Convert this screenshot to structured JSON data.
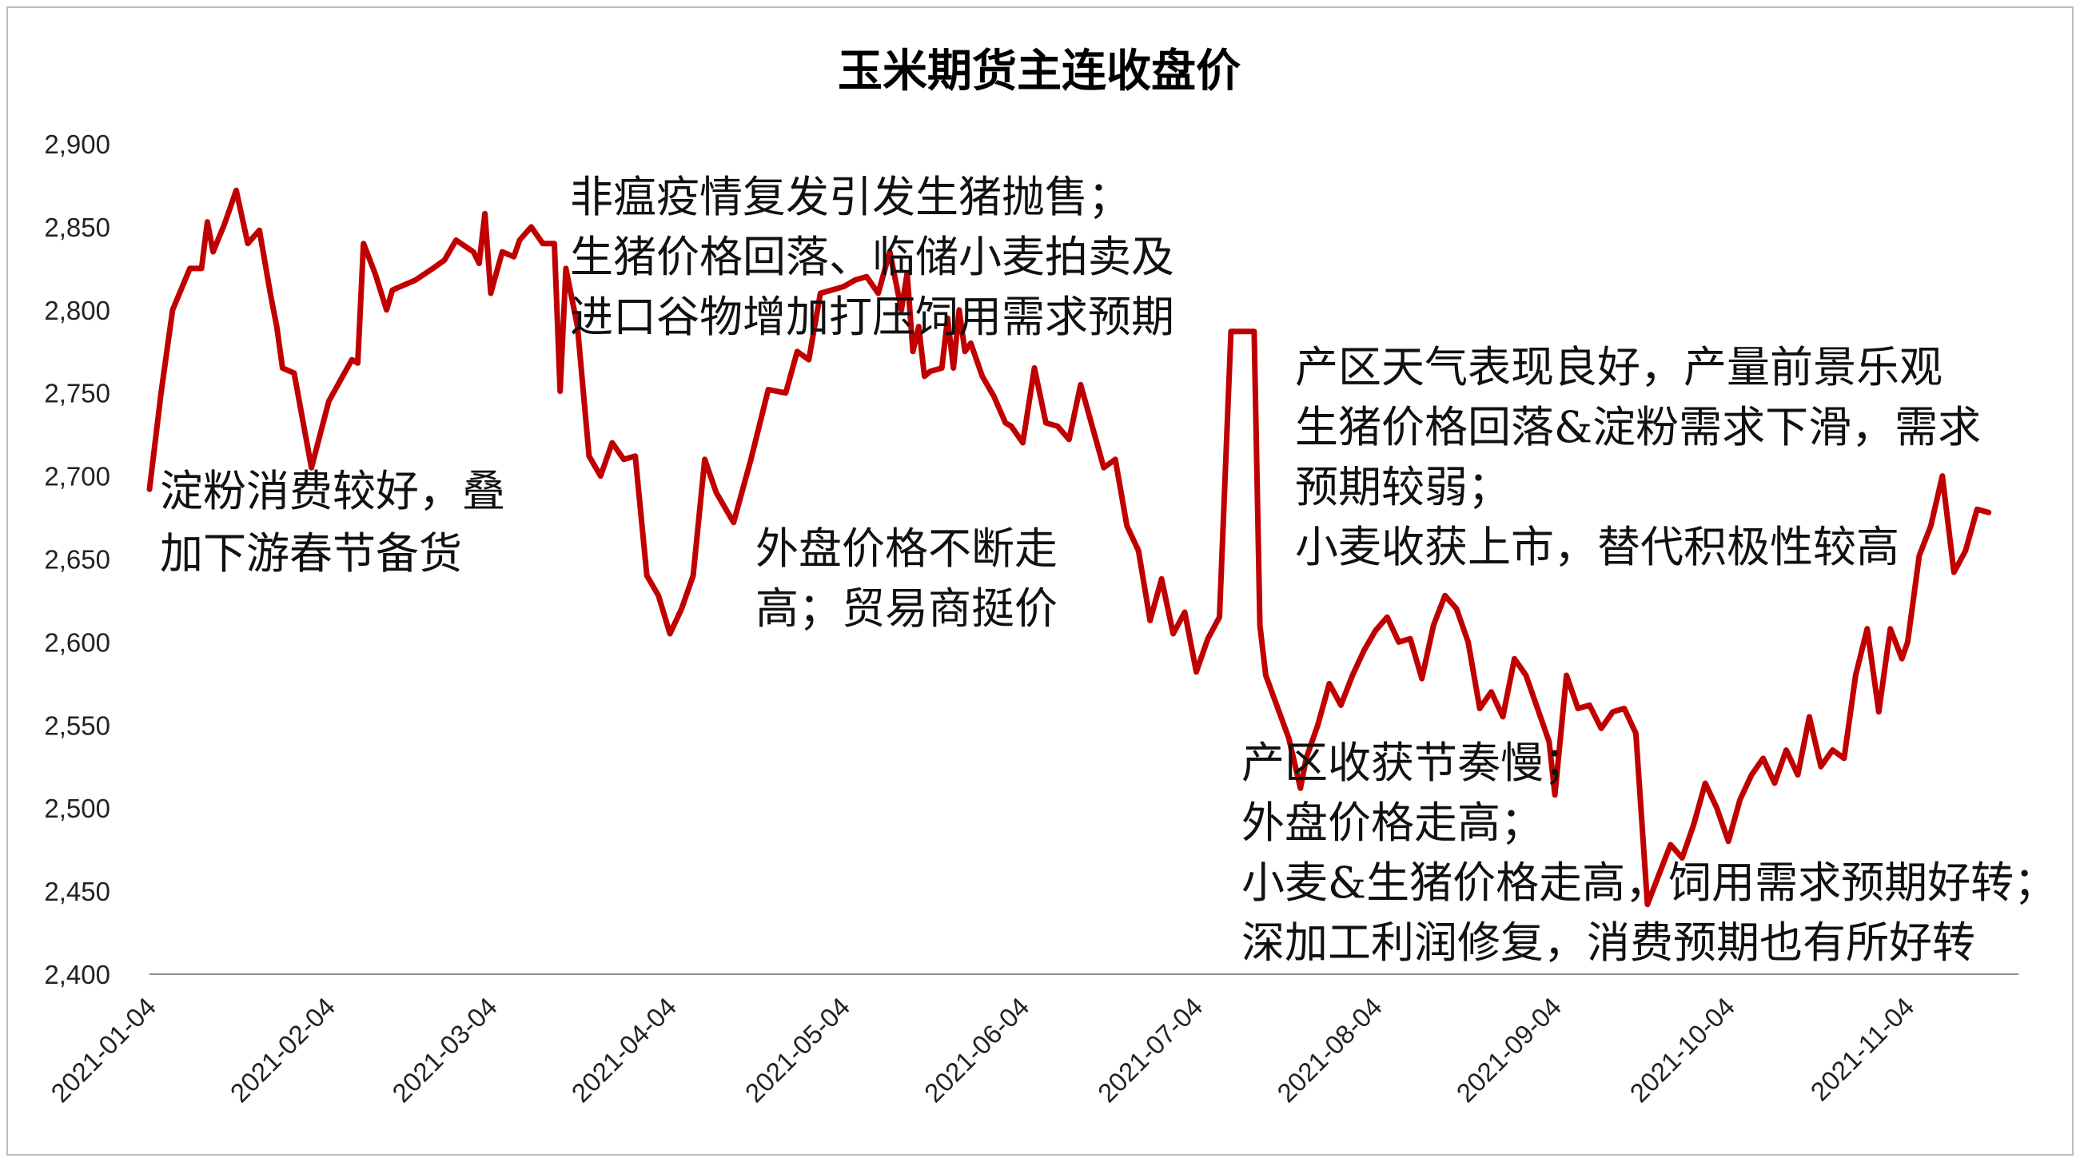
{
  "chart_data": {
    "type": "line",
    "title": "玉米期货主连收盘价",
    "xlabel": "",
    "ylabel": "",
    "ylim": [
      2400,
      2900
    ],
    "y_ticks": [
      "2,400",
      "2,450",
      "2,500",
      "2,550",
      "2,600",
      "2,650",
      "2,700",
      "2,750",
      "2,800",
      "2,850",
      "2,900"
    ],
    "x_ticks": [
      "2021-01-04",
      "2021-02-04",
      "2021-03-04",
      "2021-04-04",
      "2021-05-04",
      "2021-06-04",
      "2021-07-04",
      "2021-08-04",
      "2021-09-04",
      "2021-10-04",
      "2021-11-04"
    ],
    "grid": false,
    "line_color": "#c00000",
    "series": [
      {
        "x": [
          "2021-01-04",
          "2021-01-06",
          "2021-01-08",
          "2021-01-11",
          "2021-01-13",
          "2021-01-14",
          "2021-01-15",
          "2021-01-17",
          "2021-01-19",
          "2021-01-21",
          "2021-01-23",
          "2021-01-25",
          "2021-01-26",
          "2021-01-27",
          "2021-01-29",
          "2021-02-01",
          "2021-02-04",
          "2021-02-08",
          "2021-02-09",
          "2021-02-10",
          "2021-02-12",
          "2021-02-14",
          "2021-02-15",
          "2021-02-19",
          "2021-02-22",
          "2021-02-24",
          "2021-02-26",
          "2021-03-01",
          "2021-03-02",
          "2021-03-03",
          "2021-03-04",
          "2021-03-06",
          "2021-03-08",
          "2021-03-09",
          "2021-03-11",
          "2021-03-13",
          "2021-03-15",
          "2021-03-16",
          "2021-03-17",
          "2021-03-19",
          "2021-03-21",
          "2021-03-23",
          "2021-03-25",
          "2021-03-27",
          "2021-03-29",
          "2021-03-31",
          "2021-04-02",
          "2021-04-04",
          "2021-04-06",
          "2021-04-08",
          "2021-04-10",
          "2021-04-12",
          "2021-04-15",
          "2021-04-18",
          "2021-04-21",
          "2021-04-24",
          "2021-04-26",
          "2021-04-28",
          "2021-04-30",
          "2021-05-02",
          "2021-05-04",
          "2021-05-06",
          "2021-05-08",
          "2021-05-10",
          "2021-05-12",
          "2021-05-14",
          "2021-05-15",
          "2021-05-16",
          "2021-05-17",
          "2021-05-18",
          "2021-05-19",
          "2021-05-21",
          "2021-05-22",
          "2021-05-23",
          "2021-05-24",
          "2021-05-25",
          "2021-05-26",
          "2021-05-28",
          "2021-05-30",
          "2021-06-01",
          "2021-06-02",
          "2021-06-04",
          "2021-06-06",
          "2021-06-08",
          "2021-06-10",
          "2021-06-12",
          "2021-06-14",
          "2021-06-16",
          "2021-06-18",
          "2021-06-20",
          "2021-06-22",
          "2021-06-24",
          "2021-06-26",
          "2021-06-28",
          "2021-06-30",
          "2021-07-02",
          "2021-07-04",
          "2021-07-06",
          "2021-07-08",
          "2021-07-10",
          "2021-07-12",
          "2021-07-14",
          "2021-07-15",
          "2021-07-16",
          "2021-07-20",
          "2021-07-22",
          "2021-07-23",
          "2021-07-25",
          "2021-07-27",
          "2021-07-29",
          "2021-07-31",
          "2021-08-02",
          "2021-08-04",
          "2021-08-06",
          "2021-08-08",
          "2021-08-10",
          "2021-08-12",
          "2021-08-14",
          "2021-08-16",
          "2021-08-18",
          "2021-08-20",
          "2021-08-22",
          "2021-08-24",
          "2021-08-26",
          "2021-08-28",
          "2021-08-30",
          "2021-09-01",
          "2021-09-03",
          "2021-09-04",
          "2021-09-06",
          "2021-09-08",
          "2021-09-10",
          "2021-09-12",
          "2021-09-14",
          "2021-09-16",
          "2021-09-18",
          "2021-09-20",
          "2021-09-22",
          "2021-09-24",
          "2021-09-26",
          "2021-09-28",
          "2021-09-30",
          "2021-10-02",
          "2021-10-04",
          "2021-10-06",
          "2021-10-08",
          "2021-10-10",
          "2021-10-12",
          "2021-10-14",
          "2021-10-16",
          "2021-10-18",
          "2021-10-20",
          "2021-10-22",
          "2021-10-24",
          "2021-10-26",
          "2021-10-28",
          "2021-10-30",
          "2021-11-01",
          "2021-11-03",
          "2021-11-04",
          "2021-11-06",
          "2021-11-08",
          "2021-11-10",
          "2021-11-12",
          "2021-11-14",
          "2021-11-16",
          "2021-11-18"
        ],
        "y": [
          2692,
          2750,
          2800,
          2825,
          2825,
          2853,
          2835,
          2852,
          2872,
          2840,
          2848,
          2808,
          2790,
          2765,
          2762,
          2705,
          2745,
          2770,
          2768,
          2840,
          2822,
          2800,
          2812,
          2818,
          2825,
          2830,
          2842,
          2835,
          2828,
          2858,
          2810,
          2835,
          2832,
          2842,
          2850,
          2840,
          2840,
          2751,
          2825,
          2790,
          2712,
          2700,
          2720,
          2710,
          2712,
          2640,
          2628,
          2605,
          2620,
          2640,
          2710,
          2690,
          2672,
          2710,
          2752,
          2750,
          2775,
          2770,
          2810,
          2812,
          2814,
          2818,
          2820,
          2810,
          2835,
          2800,
          2822,
          2775,
          2790,
          2760,
          2763,
          2765,
          2795,
          2765,
          2800,
          2775,
          2780,
          2760,
          2748,
          2732,
          2730,
          2720,
          2765,
          2732,
          2730,
          2722,
          2755,
          2730,
          2705,
          2710,
          2670,
          2655,
          2613,
          2638,
          2605,
          2618,
          2582,
          2602,
          2615,
          2787,
          2787,
          2787,
          2610,
          2580,
          2542,
          2512,
          2530,
          2550,
          2575,
          2562,
          2580,
          2595,
          2607,
          2615,
          2600,
          2602,
          2578,
          2610,
          2628,
          2620,
          2600,
          2560,
          2570,
          2555,
          2590,
          2580,
          2560,
          2540,
          2508,
          2580,
          2560,
          2562,
          2548,
          2558,
          2560,
          2545,
          2442,
          2460,
          2478,
          2470,
          2490,
          2515,
          2500,
          2480,
          2505,
          2520,
          2530,
          2515,
          2535,
          2520,
          2555,
          2525,
          2535,
          2530,
          2580,
          2608,
          2558,
          2608,
          2590,
          2600,
          2652,
          2670,
          2700,
          2642,
          2655,
          2680,
          2678
        ]
      }
    ],
    "annotations": [
      {
        "lines": [
          "淀粉消费较好，叠",
          "加下游春节备货"
        ]
      },
      {
        "lines": [
          "非瘟疫情复发引发生猪抛售；",
          "生猪价格回落、临储小麦拍卖及",
          "进口谷物增加打压饲用需求预期"
        ]
      },
      {
        "lines": [
          "外盘价格不断走",
          "高；贸易商挺价"
        ]
      },
      {
        "lines": [
          "产区天气表现良好，产量前景乐观",
          "生猪价格回落&淀粉需求下滑，需求",
          "预期较弱；",
          "小麦收获上市，替代积极性较高"
        ]
      },
      {
        "lines": [
          "产区收获节奏慢；",
          "外盘价格走高；",
          "小麦&生猪价格走高，饲用需求预期好转；",
          "深加工利润修复，消费预期也有所好转"
        ]
      }
    ]
  }
}
